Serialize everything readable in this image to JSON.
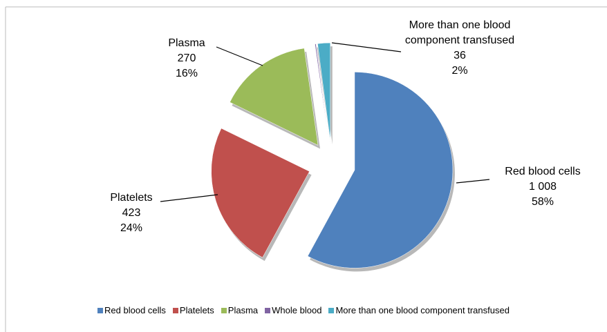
{
  "chart_data": {
    "type": "pie",
    "categories": [
      "Red blood cells",
      "Platelets",
      "Plasma",
      "Whole blood",
      "More than one blood component transfused"
    ],
    "values": [
      1008,
      423,
      270,
      3,
      36
    ],
    "value_labels": [
      "1 008",
      "423",
      "270",
      null,
      "36"
    ],
    "percent_labels": [
      "58%",
      "24%",
      "16%",
      null,
      "2%"
    ],
    "colors": [
      "#4f81bd",
      "#c0504d",
      "#9bbb59",
      "#8064a2",
      "#4bacc6"
    ],
    "legend": "bottom"
  }
}
